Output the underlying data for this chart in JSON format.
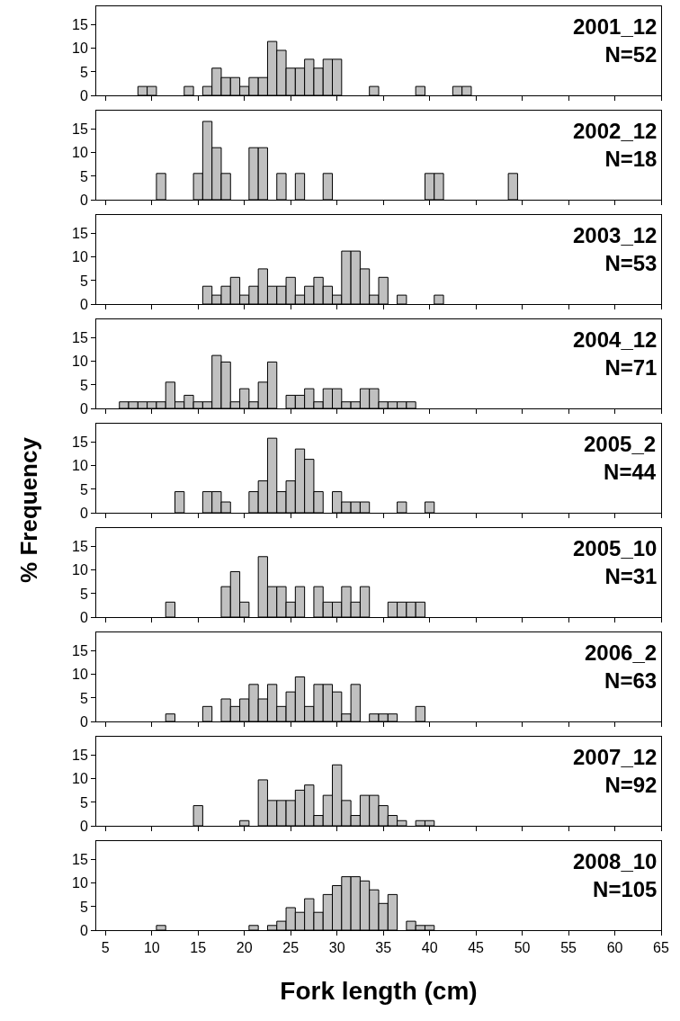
{
  "chart_data": [
    {
      "type": "histogram",
      "title": "2001_12",
      "subtitle": "N=52",
      "color": "#c0c0c0",
      "tick_labels": "y",
      "xlim": [
        4,
        65
      ],
      "xticks": [
        5,
        10,
        15,
        20,
        25,
        30,
        35,
        40,
        45,
        50,
        55,
        60,
        65
      ],
      "ylim": [
        0,
        19
      ],
      "yticks": [
        0,
        5,
        10,
        15
      ],
      "bins": [
        6.5,
        7.5,
        8.5,
        9.5,
        10.5,
        11.5,
        12.5,
        13.5,
        14.5,
        15.5,
        16.5,
        17.5,
        18.5,
        19.5,
        20.5,
        21.5,
        22.5,
        23.5,
        24.5,
        25.5,
        26.5,
        27.5,
        28.5,
        29.5,
        30.5,
        31.5,
        32.5,
        33.5,
        34.5,
        35.5,
        36.5,
        37.5,
        38.5,
        39.5,
        40.5,
        41.5,
        42.5,
        43.5,
        44.5,
        45.5,
        46.5,
        47.5,
        48.5,
        49.5
      ],
      "values": [
        0,
        0,
        1.9,
        1.9,
        0,
        0,
        0,
        1.9,
        0,
        1.9,
        5.8,
        3.8,
        3.8,
        1.9,
        3.8,
        3.8,
        11.5,
        9.6,
        5.8,
        5.8,
        7.7,
        5.8,
        7.7,
        7.7,
        0,
        0,
        0,
        1.9,
        0,
        0,
        0,
        0,
        1.9,
        0,
        0,
        0,
        1.9,
        1.9,
        0,
        0,
        0,
        0,
        0
      ]
    },
    {
      "type": "histogram",
      "title": "2002_12",
      "subtitle": "N=18",
      "color": "#c0c0c0",
      "tick_labels": "y",
      "xlim": [
        4,
        65
      ],
      "xticks": [
        5,
        10,
        15,
        20,
        25,
        30,
        35,
        40,
        45,
        50,
        55,
        60,
        65
      ],
      "ylim": [
        0,
        19
      ],
      "yticks": [
        0,
        5,
        10,
        15
      ],
      "bins": [
        6.5,
        7.5,
        8.5,
        9.5,
        10.5,
        11.5,
        12.5,
        13.5,
        14.5,
        15.5,
        16.5,
        17.5,
        18.5,
        19.5,
        20.5,
        21.5,
        22.5,
        23.5,
        24.5,
        25.5,
        26.5,
        27.5,
        28.5,
        29.5,
        30.5,
        31.5,
        32.5,
        33.5,
        34.5,
        35.5,
        36.5,
        37.5,
        38.5,
        39.5,
        40.5,
        41.5,
        42.5,
        43.5,
        44.5,
        45.5,
        46.5,
        47.5,
        48.5,
        49.5
      ],
      "values": [
        0,
        0,
        0,
        0,
        5.6,
        0,
        0,
        0,
        5.6,
        16.7,
        11.1,
        5.6,
        0,
        0,
        11.1,
        11.1,
        0,
        5.6,
        0,
        5.6,
        0,
        0,
        5.6,
        0,
        0,
        0,
        0,
        0,
        0,
        0,
        0,
        0,
        0,
        5.6,
        5.6,
        0,
        0,
        0,
        0,
        0,
        0,
        0,
        5.6
      ]
    },
    {
      "type": "histogram",
      "title": "2003_12",
      "subtitle": "N=53",
      "color": "#c0c0c0",
      "tick_labels": "y",
      "xlim": [
        4,
        65
      ],
      "xticks": [
        5,
        10,
        15,
        20,
        25,
        30,
        35,
        40,
        45,
        50,
        55,
        60,
        65
      ],
      "ylim": [
        0,
        19
      ],
      "yticks": [
        0,
        5,
        10,
        15
      ],
      "bins": [
        6.5,
        7.5,
        8.5,
        9.5,
        10.5,
        11.5,
        12.5,
        13.5,
        14.5,
        15.5,
        16.5,
        17.5,
        18.5,
        19.5,
        20.5,
        21.5,
        22.5,
        23.5,
        24.5,
        25.5,
        26.5,
        27.5,
        28.5,
        29.5,
        30.5,
        31.5,
        32.5,
        33.5,
        34.5,
        35.5,
        36.5,
        37.5,
        38.5,
        39.5,
        40.5,
        41.5,
        42.5,
        43.5,
        44.5,
        45.5,
        46.5,
        47.5,
        48.5,
        49.5
      ],
      "values": [
        0,
        0,
        0,
        0,
        0,
        0,
        0,
        0,
        0,
        3.8,
        1.9,
        3.8,
        5.7,
        1.9,
        3.8,
        7.5,
        3.8,
        3.8,
        5.7,
        1.9,
        3.8,
        5.7,
        3.8,
        1.9,
        11.3,
        11.3,
        7.5,
        1.9,
        5.7,
        0,
        1.9,
        0,
        0,
        0,
        1.9,
        0,
        0,
        0,
        0,
        0,
        0,
        0,
        0
      ]
    },
    {
      "type": "histogram",
      "title": "2004_12",
      "subtitle": "N=71",
      "color": "#c0c0c0",
      "tick_labels": "y",
      "xlim": [
        4,
        65
      ],
      "xticks": [
        5,
        10,
        15,
        20,
        25,
        30,
        35,
        40,
        45,
        50,
        55,
        60,
        65
      ],
      "ylim": [
        0,
        19
      ],
      "yticks": [
        0,
        5,
        10,
        15
      ],
      "bins": [
        6.5,
        7.5,
        8.5,
        9.5,
        10.5,
        11.5,
        12.5,
        13.5,
        14.5,
        15.5,
        16.5,
        17.5,
        18.5,
        19.5,
        20.5,
        21.5,
        22.5,
        23.5,
        24.5,
        25.5,
        26.5,
        27.5,
        28.5,
        29.5,
        30.5,
        31.5,
        32.5,
        33.5,
        34.5,
        35.5,
        36.5,
        37.5,
        38.5,
        39.5,
        40.5,
        41.5,
        42.5,
        43.5,
        44.5,
        45.5,
        46.5,
        47.5,
        48.5,
        49.5
      ],
      "values": [
        1.4,
        1.4,
        1.4,
        1.4,
        1.4,
        5.6,
        1.4,
        2.8,
        1.4,
        1.4,
        11.3,
        9.9,
        1.4,
        4.2,
        1.4,
        5.6,
        9.9,
        0,
        2.8,
        2.8,
        4.2,
        1.4,
        4.2,
        4.2,
        1.4,
        1.4,
        4.2,
        4.2,
        1.4,
        1.4,
        1.4,
        1.4,
        0,
        0,
        0,
        0,
        0,
        0,
        0,
        0,
        0,
        0,
        0
      ]
    },
    {
      "type": "histogram",
      "title": "2005_2",
      "subtitle": "N=44",
      "ylabel": "% Frequency",
      "color": "#c0c0c0",
      "tick_labels": "y",
      "xlim": [
        4,
        65
      ],
      "xticks": [
        5,
        10,
        15,
        20,
        25,
        30,
        35,
        40,
        45,
        50,
        55,
        60,
        65
      ],
      "ylim": [
        0,
        19
      ],
      "yticks": [
        0,
        5,
        10,
        15
      ],
      "bins": [
        6.5,
        7.5,
        8.5,
        9.5,
        10.5,
        11.5,
        12.5,
        13.5,
        14.5,
        15.5,
        16.5,
        17.5,
        18.5,
        19.5,
        20.5,
        21.5,
        22.5,
        23.5,
        24.5,
        25.5,
        26.5,
        27.5,
        28.5,
        29.5,
        30.5,
        31.5,
        32.5,
        33.5,
        34.5,
        35.5,
        36.5,
        37.5,
        38.5,
        39.5,
        40.5,
        41.5,
        42.5,
        43.5,
        44.5,
        45.5,
        46.5,
        47.5,
        48.5,
        49.5
      ],
      "values": [
        0,
        0,
        0,
        0,
        0,
        0,
        4.5,
        0,
        0,
        4.5,
        4.5,
        2.3,
        0,
        0,
        4.5,
        6.8,
        15.9,
        4.5,
        6.8,
        13.6,
        11.4,
        4.5,
        0,
        4.5,
        2.3,
        2.3,
        2.3,
        0,
        0,
        0,
        2.3,
        0,
        0,
        2.3,
        0,
        0,
        0,
        0,
        0,
        0,
        0,
        0,
        0
      ]
    },
    {
      "type": "histogram",
      "title": "2005_10",
      "subtitle": "N=31",
      "color": "#c0c0c0",
      "tick_labels": "y",
      "xlim": [
        4,
        65
      ],
      "xticks": [
        5,
        10,
        15,
        20,
        25,
        30,
        35,
        40,
        45,
        50,
        55,
        60,
        65
      ],
      "ylim": [
        0,
        19
      ],
      "yticks": [
        0,
        5,
        10,
        15
      ],
      "bins": [
        6.5,
        7.5,
        8.5,
        9.5,
        10.5,
        11.5,
        12.5,
        13.5,
        14.5,
        15.5,
        16.5,
        17.5,
        18.5,
        19.5,
        20.5,
        21.5,
        22.5,
        23.5,
        24.5,
        25.5,
        26.5,
        27.5,
        28.5,
        29.5,
        30.5,
        31.5,
        32.5,
        33.5,
        34.5,
        35.5,
        36.5,
        37.5,
        38.5,
        39.5,
        40.5,
        41.5,
        42.5,
        43.5,
        44.5,
        45.5,
        46.5,
        47.5,
        48.5,
        49.5
      ],
      "values": [
        0,
        0,
        0,
        0,
        0,
        3.2,
        0,
        0,
        0,
        0,
        0,
        6.5,
        9.7,
        3.2,
        0,
        12.9,
        6.5,
        6.5,
        3.2,
        6.5,
        0,
        6.5,
        3.2,
        3.2,
        6.5,
        3.2,
        6.5,
        0,
        0,
        3.2,
        3.2,
        3.2,
        3.2,
        0,
        0,
        0,
        0,
        0,
        0,
        0,
        0,
        0,
        0
      ]
    },
    {
      "type": "histogram",
      "title": "2006_2",
      "subtitle": "N=63",
      "color": "#c0c0c0",
      "tick_labels": "y",
      "xlim": [
        4,
        65
      ],
      "xticks": [
        5,
        10,
        15,
        20,
        25,
        30,
        35,
        40,
        45,
        50,
        55,
        60,
        65
      ],
      "ylim": [
        0,
        19
      ],
      "yticks": [
        0,
        5,
        10,
        15
      ],
      "bins": [
        6.5,
        7.5,
        8.5,
        9.5,
        10.5,
        11.5,
        12.5,
        13.5,
        14.5,
        15.5,
        16.5,
        17.5,
        18.5,
        19.5,
        20.5,
        21.5,
        22.5,
        23.5,
        24.5,
        25.5,
        26.5,
        27.5,
        28.5,
        29.5,
        30.5,
        31.5,
        32.5,
        33.5,
        34.5,
        35.5,
        36.5,
        37.5,
        38.5,
        39.5,
        40.5,
        41.5,
        42.5,
        43.5,
        44.5,
        45.5,
        46.5,
        47.5,
        48.5,
        49.5
      ],
      "values": [
        0,
        0,
        0,
        0,
        0,
        1.6,
        0,
        0,
        0,
        3.2,
        0,
        4.8,
        3.2,
        4.8,
        7.9,
        4.8,
        7.9,
        3.2,
        6.3,
        9.5,
        3.2,
        7.9,
        7.9,
        6.3,
        1.6,
        7.9,
        0,
        1.6,
        1.6,
        1.6,
        0,
        0,
        3.2,
        0,
        0,
        0,
        0,
        0,
        0,
        0,
        0,
        0,
        0
      ]
    },
    {
      "type": "histogram",
      "title": "2007_12",
      "subtitle": "N=92",
      "color": "#c0c0c0",
      "tick_labels": "y",
      "xlim": [
        4,
        65
      ],
      "xticks": [
        5,
        10,
        15,
        20,
        25,
        30,
        35,
        40,
        45,
        50,
        55,
        60,
        65
      ],
      "ylim": [
        0,
        19
      ],
      "yticks": [
        0,
        5,
        10,
        15
      ],
      "bins": [
        6.5,
        7.5,
        8.5,
        9.5,
        10.5,
        11.5,
        12.5,
        13.5,
        14.5,
        15.5,
        16.5,
        17.5,
        18.5,
        19.5,
        20.5,
        21.5,
        22.5,
        23.5,
        24.5,
        25.5,
        26.5,
        27.5,
        28.5,
        29.5,
        30.5,
        31.5,
        32.5,
        33.5,
        34.5,
        35.5,
        36.5,
        37.5,
        38.5,
        39.5,
        40.5,
        41.5,
        42.5,
        43.5,
        44.5,
        45.5,
        46.5,
        47.5,
        48.5,
        49.5
      ],
      "values": [
        0,
        0,
        0,
        0,
        0,
        0,
        0,
        0,
        4.3,
        0,
        0,
        0,
        0,
        1.1,
        0,
        9.8,
        5.4,
        5.4,
        5.4,
        7.6,
        8.7,
        2.2,
        6.5,
        13.0,
        5.4,
        2.2,
        6.5,
        6.5,
        4.3,
        2.2,
        1.1,
        0,
        1.1,
        1.1,
        0,
        0,
        0,
        0,
        0,
        0,
        0,
        0,
        0
      ]
    },
    {
      "type": "histogram",
      "title": "2008_10",
      "subtitle": "N=105",
      "xlabel": "Fork length (cm)",
      "color": "#c0c0c0",
      "xlim": [
        4,
        65
      ],
      "xticks": [
        5,
        10,
        15,
        20,
        25,
        30,
        35,
        40,
        45,
        50,
        55,
        60,
        65
      ],
      "ylim": [
        0,
        19
      ],
      "yticks": [
        0,
        5,
        10,
        15
      ],
      "bins": [
        6.5,
        7.5,
        8.5,
        9.5,
        10.5,
        11.5,
        12.5,
        13.5,
        14.5,
        15.5,
        16.5,
        17.5,
        18.5,
        19.5,
        20.5,
        21.5,
        22.5,
        23.5,
        24.5,
        25.5,
        26.5,
        27.5,
        28.5,
        29.5,
        30.5,
        31.5,
        32.5,
        33.5,
        34.5,
        35.5,
        36.5,
        37.5,
        38.5,
        39.5,
        40.5,
        41.5,
        42.5,
        43.5,
        44.5,
        45.5,
        46.5,
        47.5,
        48.5,
        49.5
      ],
      "values": [
        0,
        0,
        0,
        0,
        1.0,
        0,
        0,
        0,
        0,
        0,
        0,
        0,
        0,
        0,
        1.0,
        0,
        1.0,
        1.9,
        4.8,
        3.8,
        6.7,
        3.8,
        7.6,
        9.5,
        11.4,
        11.4,
        10.5,
        8.6,
        5.7,
        7.6,
        0,
        1.9,
        1.0,
        1.0,
        0,
        0,
        0,
        0,
        0,
        0,
        0,
        0,
        0
      ]
    }
  ]
}
